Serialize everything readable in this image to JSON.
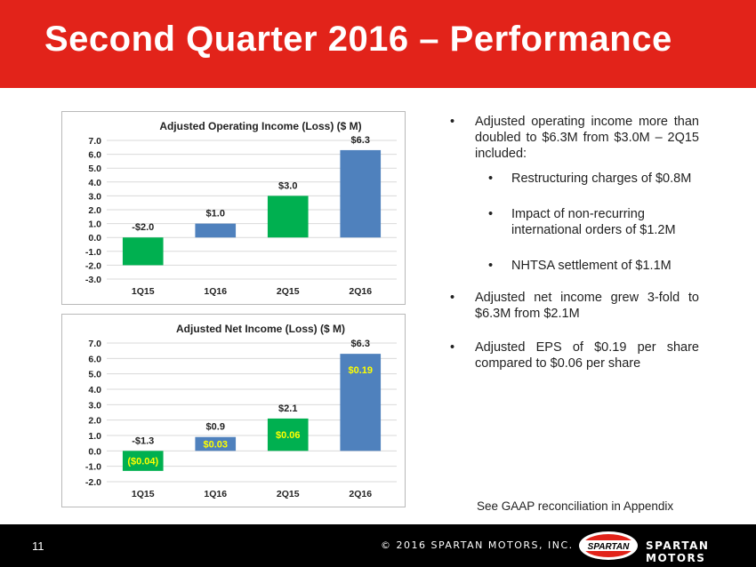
{
  "slide": {
    "title": "Second Quarter 2016 – Performance",
    "page_number": "11",
    "gaap_note": "See GAAP reconciliation in Appendix",
    "copyright": "© 2016 SPARTAN MOTORS, INC.",
    "brand": "SPARTAN MOTORS",
    "logo_text": "SPARTAN"
  },
  "bullets": [
    {
      "text": "Adjusted operating income more than doubled to $6.3M from $3.0M – 2Q15 included:"
    },
    {
      "text": "Restructuring charges of $0.8M"
    },
    {
      "text": "Impact of non-recurring international orders of $1.2M"
    },
    {
      "text": "NHTSA settlement of $1.1M"
    },
    {
      "text": "Adjusted net income grew 3-fold to $6.3M from $2.1M"
    },
    {
      "text": "Adjusted EPS of $0.19 per share compared to $0.06 per share"
    }
  ],
  "colors": {
    "header": "#e2231a",
    "green": "#00b050",
    "blue": "#4f81bd",
    "eps_label": "#ffff00",
    "footer": "#000000"
  },
  "chart_data": [
    {
      "type": "bar",
      "title": "Adjusted Operating Income (Loss) ($ M)",
      "categories": [
        "1Q15",
        "1Q16",
        "2Q15",
        "2Q16"
      ],
      "values": [
        -2.0,
        1.0,
        3.0,
        6.3
      ],
      "bar_colors": [
        "#00b050",
        "#4f81bd",
        "#00b050",
        "#4f81bd"
      ],
      "data_labels": [
        "-$2.0",
        "$1.0",
        "$3.0",
        "$6.3"
      ],
      "inner_labels": [
        "",
        "",
        "",
        ""
      ],
      "ylim": [
        -3.0,
        7.0
      ],
      "yticks": [
        "7.0",
        "6.0",
        "5.0",
        "4.0",
        "3.0",
        "2.0",
        "1.0",
        "0.0",
        "-1.0",
        "-2.0",
        "-3.0"
      ],
      "grid": true
    },
    {
      "type": "bar",
      "title": "Adjusted Net Income (Loss) ($ M)",
      "categories": [
        "1Q15",
        "1Q16",
        "2Q15",
        "2Q16"
      ],
      "values": [
        -1.3,
        0.9,
        2.1,
        6.3
      ],
      "bar_colors": [
        "#00b050",
        "#4f81bd",
        "#00b050",
        "#4f81bd"
      ],
      "data_labels": [
        "-$1.3",
        "$0.9",
        "$2.1",
        "$6.3"
      ],
      "inner_labels": [
        "($0.04)",
        "$0.03",
        "$0.06",
        "$0.19"
      ],
      "ylim": [
        -2.0,
        7.0
      ],
      "yticks": [
        "7.0",
        "6.0",
        "5.0",
        "4.0",
        "3.0",
        "2.0",
        "1.0",
        "0.0",
        "-1.0",
        "-2.0"
      ],
      "grid": true
    }
  ]
}
